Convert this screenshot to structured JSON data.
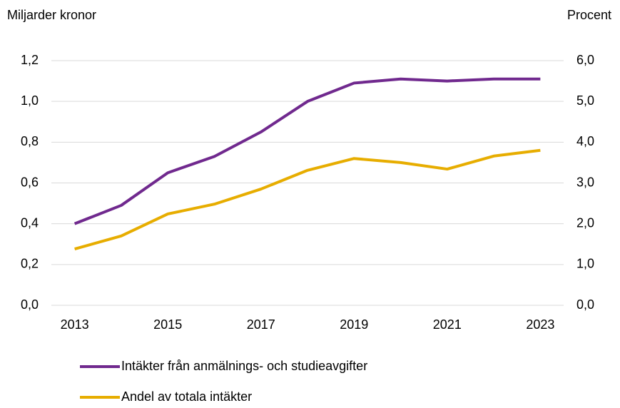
{
  "chart_data": {
    "type": "line",
    "y_axis_label": "Miljarder kronor",
    "y2_axis_label": "Procent",
    "categories": [
      "2013",
      null,
      "2015",
      null,
      "2017",
      null,
      "2019",
      null,
      "2021",
      null,
      "2023"
    ],
    "series": [
      {
        "name": "Intäkter från anmälnings- och studieavgifter",
        "color": "#70298e",
        "values": [
          0.4,
          0.49,
          0.65,
          0.73,
          0.85,
          1.0,
          1.09,
          1.11,
          1.1,
          1.11,
          1.11
        ]
      },
      {
        "name": "Andel av totala intäkter",
        "color": "#e7ad00",
        "axis": "y2",
        "values": [
          1.38,
          1.7,
          2.24,
          2.48,
          2.85,
          3.31,
          3.6,
          3.5,
          3.34,
          3.66,
          3.8
        ]
      }
    ],
    "ylim": [
      0,
      1.2
    ],
    "yticks": [
      {
        "value": 0,
        "label": "0,0"
      },
      {
        "value": 0.2,
        "label": "0,2"
      },
      {
        "value": 0.4,
        "label": "0,4"
      },
      {
        "value": 0.6,
        "label": "0,6"
      },
      {
        "value": 0.8,
        "label": "0,8"
      },
      {
        "value": 1.0,
        "label": "1,0"
      },
      {
        "value": 1.2,
        "label": "1,2"
      }
    ],
    "y2lim": [
      0,
      6
    ],
    "y2ticks": [
      {
        "value": 0,
        "label": "0,0"
      },
      {
        "value": 1,
        "label": "1,0"
      },
      {
        "value": 2,
        "label": "2,0"
      },
      {
        "value": 3,
        "label": "3,0"
      },
      {
        "value": 4,
        "label": "4,0"
      },
      {
        "value": 5,
        "label": "5,0"
      },
      {
        "value": 6,
        "label": "6,0"
      }
    ],
    "grid": true,
    "legend": "bottom"
  }
}
